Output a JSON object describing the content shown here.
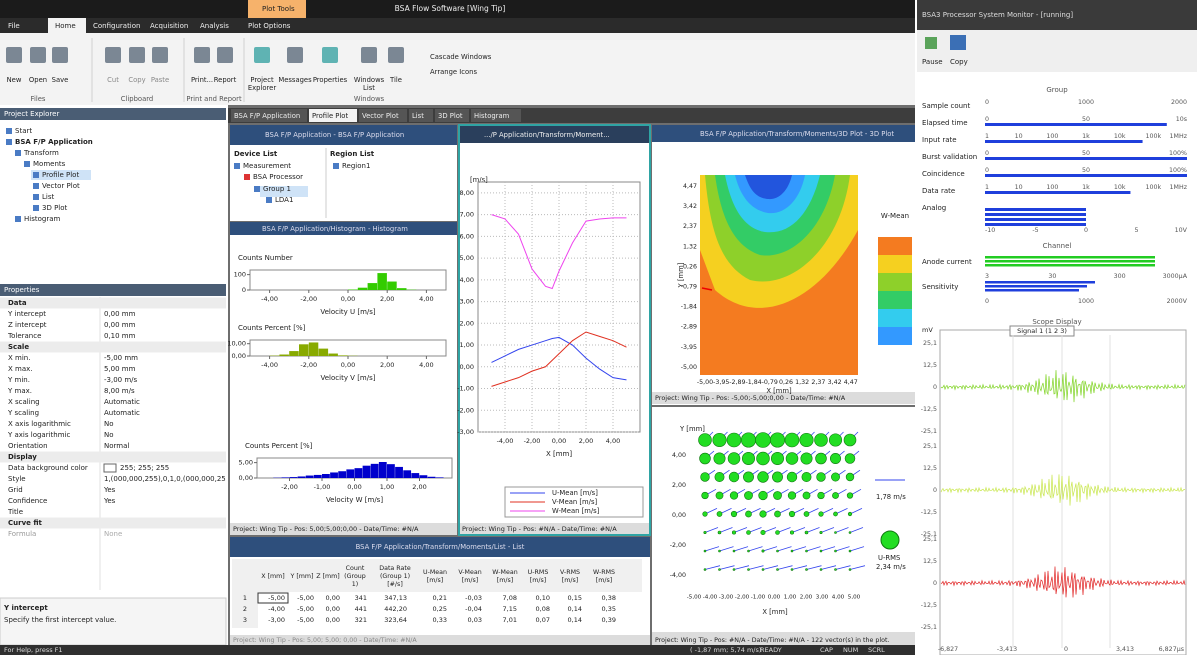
{
  "app": {
    "title": "BSA Flow Software [Wing Tip]",
    "plot_tools": "Plot Tools",
    "menu": [
      "File",
      "Home",
      "Configuration",
      "Acquisition",
      "Analysis",
      "Plot Options"
    ],
    "ribbon": {
      "buttons": [
        "New",
        "Open",
        "Save",
        "Cut",
        "Copy",
        "Paste",
        "Print...",
        "Report",
        "Project",
        "Explorer",
        "Messages",
        "Properties",
        "Windows",
        "List",
        "Tile",
        "Cascade Windows",
        "Arrange Icons"
      ],
      "groups": [
        "Files",
        "Clipboard",
        "Print and Report",
        "Windows"
      ]
    },
    "project_explorer": {
      "title": "Project Explorer",
      "items": [
        "Start",
        "BSA F/P Application",
        "Transform",
        "Moments",
        "Profile Plot",
        "Vector Plot",
        "List",
        "3D Plot",
        "Histogram"
      ]
    },
    "properties": {
      "title": "Properties",
      "sections": [
        {
          "name": "Data",
          "rows": [
            [
              "Y intercept",
              "0,00 mm"
            ],
            [
              "Z intercept",
              "0,00 mm"
            ],
            [
              "Tolerance",
              "0,10 mm"
            ]
          ]
        },
        {
          "name": "Scale",
          "rows": [
            [
              "X min.",
              "-5,00 mm"
            ],
            [
              "X max.",
              "5,00 mm"
            ],
            [
              "Y min.",
              "-3,00 m/s"
            ],
            [
              "Y max.",
              "8,00 m/s"
            ],
            [
              "X scaling",
              "Automatic"
            ],
            [
              "Y scaling",
              "Automatic"
            ],
            [
              "X axis logarithmic",
              "No"
            ],
            [
              "Y axis logarithmic",
              "No"
            ],
            [
              "Orientation",
              "Normal"
            ]
          ]
        },
        {
          "name": "Display",
          "rows": [
            [
              "Data background color",
              "255; 255; 255"
            ],
            [
              "Style",
              "1,(000,000,255),0,1,0,(000,000,25"
            ],
            [
              "Grid",
              "Yes"
            ],
            [
              "Confidence",
              "Yes"
            ],
            [
              "Title"
            ]
          ]
        },
        {
          "name": "Curve fit",
          "rows": [
            [
              "Formula",
              "None"
            ]
          ]
        }
      ]
    },
    "help": {
      "title": "Y intercept",
      "text": "Specify the first intercept value."
    },
    "status": "For Help, press F1",
    "status_right": [
      "( -1,87 mm; 5,74 m/s)",
      "READY",
      "CAP",
      "NUM",
      "SCRL"
    ],
    "tabs": [
      "BSA F/P Application",
      "Profile Plot",
      "Vector Plot",
      "List",
      "3D Plot",
      "Histogram"
    ],
    "device_window": {
      "title": "BSA F/P Application - BSA F/P Application",
      "device_list": "Device List",
      "region_list": "Region List",
      "devices": [
        "Measurement",
        "BSA Processor",
        "Group 1",
        "LDA1"
      ],
      "regions": [
        "Region1"
      ]
    },
    "histogram_window": {
      "title": "BSA F/P Application/Histogram - Histogram",
      "status": "Project: Wing Tip - Pos: 5,00;5,00;0,00 - Date/Time: #N/A",
      "charts": [
        {
          "type": "histogram",
          "title": "Counts Number",
          "xlabel": "Velocity U [m/s]",
          "color": "#33cc00",
          "bins": [
            -5,
            -4.5,
            -4,
            -3.5,
            -3,
            -2.5,
            -2,
            -1.5,
            -1,
            -0.5,
            0,
            0.5,
            1,
            1.5,
            2,
            2.5,
            3,
            3.5,
            4,
            4.5,
            5
          ],
          "values": [
            0,
            0,
            0,
            0,
            0,
            0,
            0,
            0,
            0,
            0,
            3,
            15,
            45,
            110,
            55,
            12,
            2,
            0,
            0,
            0
          ],
          "xlim": [
            -5,
            5
          ],
          "ylim": [
            0,
            130
          ],
          "xticks": [
            {
              "value": -4,
              "label": "-4,00"
            },
            {
              "value": -2,
              "label": "-2,00"
            },
            {
              "value": 0,
              "label": "0,00"
            },
            {
              "value": 2,
              "label": "2,00"
            },
            {
              "value": 4,
              "label": "4,00"
            }
          ],
          "yticks": [
            0,
            100
          ]
        },
        {
          "type": "histogram",
          "title": "Counts Percent [%]",
          "xlabel": "Velocity V [m/s]",
          "color": "#88aa00",
          "bins": [
            -5,
            -4.5,
            -4,
            -3.5,
            -3,
            -2.5,
            -2,
            -1.5,
            -1,
            -0.5,
            0,
            0.5,
            1,
            1.5,
            2,
            2.5,
            3,
            3.5,
            4,
            4.5,
            5
          ],
          "values": [
            0,
            0,
            0.3,
            1.2,
            4,
            9.5,
            11,
            6,
            2,
            0.5,
            0.2,
            0,
            0,
            0,
            0,
            0,
            0,
            0,
            0,
            0
          ],
          "xlim": [
            -5,
            5
          ],
          "ylim": [
            0,
            13
          ],
          "xticks": [
            {
              "value": -4,
              "label": "-4,00"
            },
            {
              "value": -2,
              "label": "-2,00"
            },
            {
              "value": 0,
              "label": "0,00"
            },
            {
              "value": 2,
              "label": "2,00"
            },
            {
              "value": 4,
              "label": "4,00"
            }
          ],
          "yticks": [
            {
              "value": 0,
              "label": "0,00"
            },
            {
              "value": 10,
              "label": "10,00"
            }
          ]
        },
        {
          "type": "histogram",
          "title": "Counts Percent [%]",
          "xlabel": "Velocity W [m/s]",
          "color": "#0000cc",
          "bins": [
            -3,
            -2.75,
            -2.5,
            -2.25,
            -2,
            -1.75,
            -1.5,
            -1.25,
            -1,
            -0.75,
            -0.5,
            -0.25,
            0,
            0.25,
            0.5,
            0.75,
            1,
            1.25,
            1.5,
            1.75,
            2,
            2.25,
            2.5,
            2.75,
            3
          ],
          "values": [
            0,
            0,
            0.1,
            0.2,
            0.3,
            0.5,
            0.8,
            1,
            1.3,
            1.8,
            2.2,
            2.8,
            3.2,
            4,
            4.6,
            5.2,
            4.5,
            3.6,
            2.5,
            1.6,
            0.9,
            0.4,
            0.2,
            0
          ],
          "xlim": [
            -3,
            3
          ],
          "ylim": [
            0,
            6.5
          ],
          "xticks": [
            {
              "value": -2,
              "label": "-2,00"
            },
            {
              "value": -1,
              "label": "-1,00"
            },
            {
              "value": 0,
              "label": "0,00"
            },
            {
              "value": 1,
              "label": "1,00"
            },
            {
              "value": 2,
              "label": "2,00"
            }
          ],
          "yticks": [
            {
              "value": 0,
              "label": "0,00"
            },
            {
              "value": 5,
              "label": "5,00"
            }
          ]
        }
      ]
    },
    "profile_window": {
      "title": ".../P Application/Transform/Moment...",
      "status": "Project: Wing Tip - Pos: #N/A - Date/Time: #N/A",
      "chart": {
        "type": "line",
        "ylabel": "[m/s]",
        "xlabel": "X [mm]",
        "x": [
          -5,
          -4,
          -3,
          -2,
          -1,
          -0.5,
          0,
          1,
          2,
          3,
          4,
          5
        ],
        "series": [
          {
            "name": "U-Mean [m/s]",
            "color": "#3344ee",
            "values": [
              0.2,
              0.5,
              0.8,
              1.0,
              1.2,
              1.3,
              1.35,
              1.0,
              0.4,
              -0.1,
              -0.5,
              -0.6
            ]
          },
          {
            "name": "V-Mean [m/s]",
            "color": "#e03020",
            "values": [
              -0.9,
              -0.7,
              -0.5,
              -0.2,
              0.0,
              0.3,
              0.6,
              1.2,
              1.6,
              1.4,
              1.2,
              0.9
            ]
          },
          {
            "name": "W-Mean [m/s]",
            "color": "#ee44ee",
            "values": [
              7.0,
              6.8,
              6.1,
              4.5,
              3.7,
              3.6,
              4.4,
              5.7,
              6.7,
              6.8,
              6.85,
              6.85
            ]
          }
        ],
        "xlim": [
          -6,
          6
        ],
        "ylim": [
          -3,
          8.5
        ],
        "grid": true,
        "xticks": [
          {
            "value": -4,
            "label": "-4,00"
          },
          {
            "value": -2,
            "label": "-2,00"
          },
          {
            "value": 0,
            "label": "0,00"
          },
          {
            "value": 2,
            "label": "2,00"
          },
          {
            "value": 4,
            "label": "4,00"
          }
        ],
        "yticks": [
          {
            "value": 8,
            "label": "8,00"
          },
          {
            "value": 7,
            "label": "7,00"
          },
          {
            "value": 6,
            "label": "6,00"
          },
          {
            "value": 5,
            "label": "5,00"
          },
          {
            "value": 4,
            "label": "4,00"
          },
          {
            "value": 3,
            "label": "3,00"
          },
          {
            "value": 2,
            "label": "2,00"
          },
          {
            "value": 1,
            "label": "1,00"
          },
          {
            "value": 0,
            "label": "0,00"
          },
          {
            "value": -1,
            "label": "-1,00"
          },
          {
            "value": -2,
            "label": "-2,00"
          },
          {
            "value": -3,
            "label": "-3,00"
          }
        ]
      }
    },
    "plot3d_window": {
      "title": "BSA F/P Application/Transform/Moments/3D Plot - 3D Plot",
      "status": "Project: Wing Tip - Pos: -5,00;-5,00;0,00 - Date/Time: #N/A",
      "ylabel": "Y [mm]",
      "xlabel": "X [mm]",
      "colorbar": "W-Mean",
      "yticks": [
        "4,47",
        "3,42",
        "2,37",
        "1,32",
        "0,26",
        "-0,79",
        "-1,84",
        "-2,89",
        "-3,95",
        "-5,00"
      ],
      "xticks": [
        "-5,00",
        "-3,95",
        "-2,89",
        "-1,84",
        "-0,79",
        "0,26",
        "1,32",
        "2,37",
        "3,42",
        "4,47"
      ]
    },
    "vector_window": {
      "status": "Project: Wing Tip - Pos: #N/A - Date/Time: #N/A - 122 vector(s) in the plot.",
      "ylabel": "Y [mm]",
      "xlabel": "X [mm]",
      "yticks": [
        "4,00",
        "2,00",
        "0,00",
        "-2,00",
        "-4,00"
      ],
      "xticks": [
        "-5,00",
        "-4,00",
        "-3,00",
        "-2,00",
        "-1,00",
        "0,00",
        "1,00",
        "2,00",
        "3,00",
        "4,00",
        "5,00"
      ],
      "legend": [
        "1,78 m/s",
        "U-RMS",
        "2,34 m/s"
      ]
    },
    "list_window": {
      "title": "BSA F/P Application/Transform/Moments/List - List",
      "status": "Project: Wing Tip - Pos: 5,00; 5,00; 0,00 - Date/Time: #N/A",
      "columns": [
        [
          "X [mm]"
        ],
        [
          "Y [mm]"
        ],
        [
          "Z [mm]"
        ],
        [
          "Count",
          "(Group",
          "1)"
        ],
        [
          "Data Rate",
          "(Group 1)",
          "[#/s]"
        ],
        [
          "U-Mean",
          "[m/s]"
        ],
        [
          "V-Mean",
          "[m/s]"
        ],
        [
          "W-Mean",
          "[m/s]"
        ],
        [
          "U-RMS",
          "[m/s]"
        ],
        [
          "V-RMS",
          "[m/s]"
        ],
        [
          "W-RMS",
          "[m/s]"
        ]
      ],
      "rows": [
        [
          "1",
          "-5,00",
          "-5,00",
          "0,00",
          "341",
          "347,13",
          "0,21",
          "-0,03",
          "7,08",
          "0,10",
          "0,15",
          "0,38"
        ],
        [
          "2",
          "-4,00",
          "-5,00",
          "0,00",
          "441",
          "442,20",
          "0,25",
          "-0,04",
          "7,15",
          "0,08",
          "0,14",
          "0,35"
        ],
        [
          "3",
          "-3,00",
          "-5,00",
          "0,00",
          "321",
          "323,64",
          "0,33",
          "0,03",
          "7,01",
          "0,07",
          "0,14",
          "0,39"
        ]
      ]
    }
  },
  "monitor": {
    "title": "BSA3 Processor System Monitor - [running]",
    "buttons": [
      "Pause",
      "Copy"
    ],
    "group": {
      "title": "Group",
      "rows": [
        {
          "label": "Sample count",
          "scale": [
            "0",
            "1000",
            "2000"
          ]
        },
        {
          "label": "Elapsed time",
          "scale": [
            "0",
            "50",
            "10s"
          ]
        },
        {
          "label": "Input rate",
          "scale": [
            "1",
            "10",
            "100",
            "1k",
            "10k",
            "100k",
            "1MHz"
          ]
        },
        {
          "label": "Burst validation",
          "scale": [
            "0",
            "50",
            "100%"
          ]
        },
        {
          "label": "Coincidence",
          "scale": [
            "0",
            "50",
            "100%"
          ]
        },
        {
          "label": "Data rate",
          "scale": [
            "1",
            "10",
            "100",
            "1k",
            "10k",
            "100k",
            "1MHz"
          ]
        },
        {
          "label": "Analog",
          "scale": [
            "-10",
            "-5",
            "0",
            "5",
            "10V"
          ]
        }
      ]
    },
    "channel": {
      "title": "Channel",
      "rows": [
        {
          "label": "Anode current",
          "scale": [
            "3",
            "30",
            "300",
            "3000µA"
          ]
        },
        {
          "label": "Sensitivity",
          "scale": [
            "0",
            "1000",
            "2000V"
          ]
        }
      ]
    },
    "scope": {
      "title": "Scope Display",
      "unit": "mV",
      "legend": "Signal 1 (1 2 3)",
      "yticks": [
        "25,1",
        "12,5",
        "0",
        "-12,5",
        "-25,1"
      ],
      "xticks": [
        "-6,827",
        "-3,413",
        "0",
        "3,413",
        "6,827µs"
      ]
    }
  }
}
